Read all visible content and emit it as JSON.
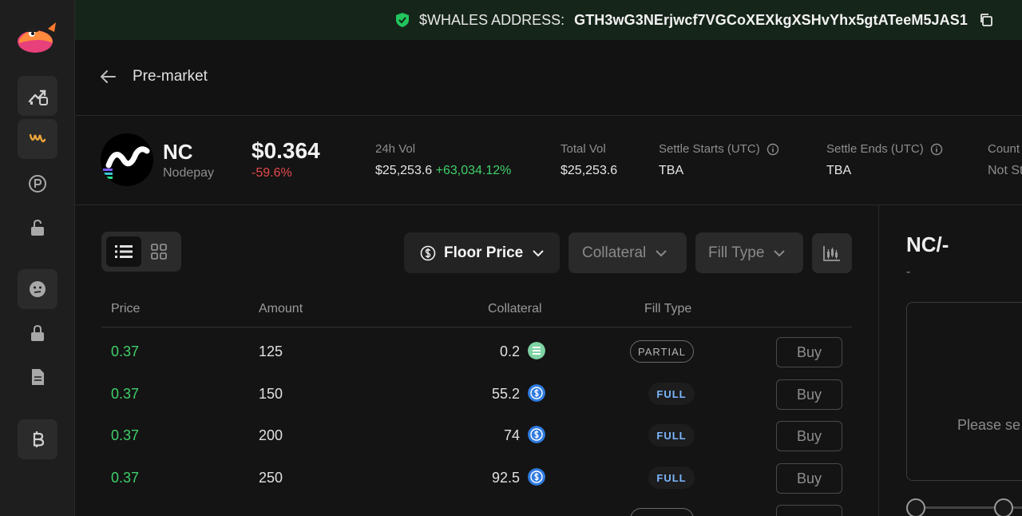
{
  "banner": {
    "address_label": "$WHALES ADDRESS:",
    "address_value": "GTH3wG3NErjwcf7VGCoXEXkgXSHvYhx5gtATeeM5JAS1",
    "accent": "#22c55e"
  },
  "sidebar": {
    "items": [
      {
        "icon": "chart-up-icon"
      },
      {
        "icon": "wave-icon",
        "active": true
      },
      {
        "icon": "points-icon"
      },
      {
        "icon": "unlock-icon"
      },
      {
        "icon": "emoji-icon"
      },
      {
        "icon": "lock-icon"
      },
      {
        "icon": "document-icon"
      },
      {
        "icon": "bitcoin-icon"
      }
    ]
  },
  "header": {
    "title": "Pre-market"
  },
  "token": {
    "symbol": "NC",
    "name": "Nodepay",
    "price": "$0.364",
    "change": "-59.6%",
    "stats": {
      "vol24_label": "24h Vol",
      "vol24_value": "$25,253.6",
      "vol24_change": "+63,034.12%",
      "total_vol_label": "Total Vol",
      "total_vol_value": "$25,253.6",
      "settle_start_label": "Settle Starts (UTC)",
      "settle_start_value": "TBA",
      "settle_end_label": "Settle Ends (UTC)",
      "settle_end_value": "TBA",
      "countdown_label": "Count",
      "countdown_value": "Not St"
    }
  },
  "filters": {
    "floor_price": "Floor Price",
    "collateral": "Collateral",
    "fill_type": "Fill Type"
  },
  "table": {
    "headers": {
      "price": "Price",
      "amount": "Amount",
      "collateral": "Collateral",
      "fill_type": "Fill Type"
    },
    "rows": [
      {
        "price": "0.37",
        "amount": "125",
        "collateral": "0.2",
        "coin": "sol",
        "fill": "PARTIAL",
        "action": "Buy"
      },
      {
        "price": "0.37",
        "amount": "150",
        "collateral": "55.2",
        "coin": "usdc",
        "fill": "FULL",
        "action": "Buy"
      },
      {
        "price": "0.37",
        "amount": "200",
        "collateral": "74",
        "coin": "usdc",
        "fill": "FULL",
        "action": "Buy"
      },
      {
        "price": "0.37",
        "amount": "250",
        "collateral": "92.5",
        "coin": "usdc",
        "fill": "FULL",
        "action": "Buy"
      }
    ]
  },
  "right_panel": {
    "pair_title": "NC/-",
    "pair_sub": "-",
    "hint": "Please se"
  }
}
